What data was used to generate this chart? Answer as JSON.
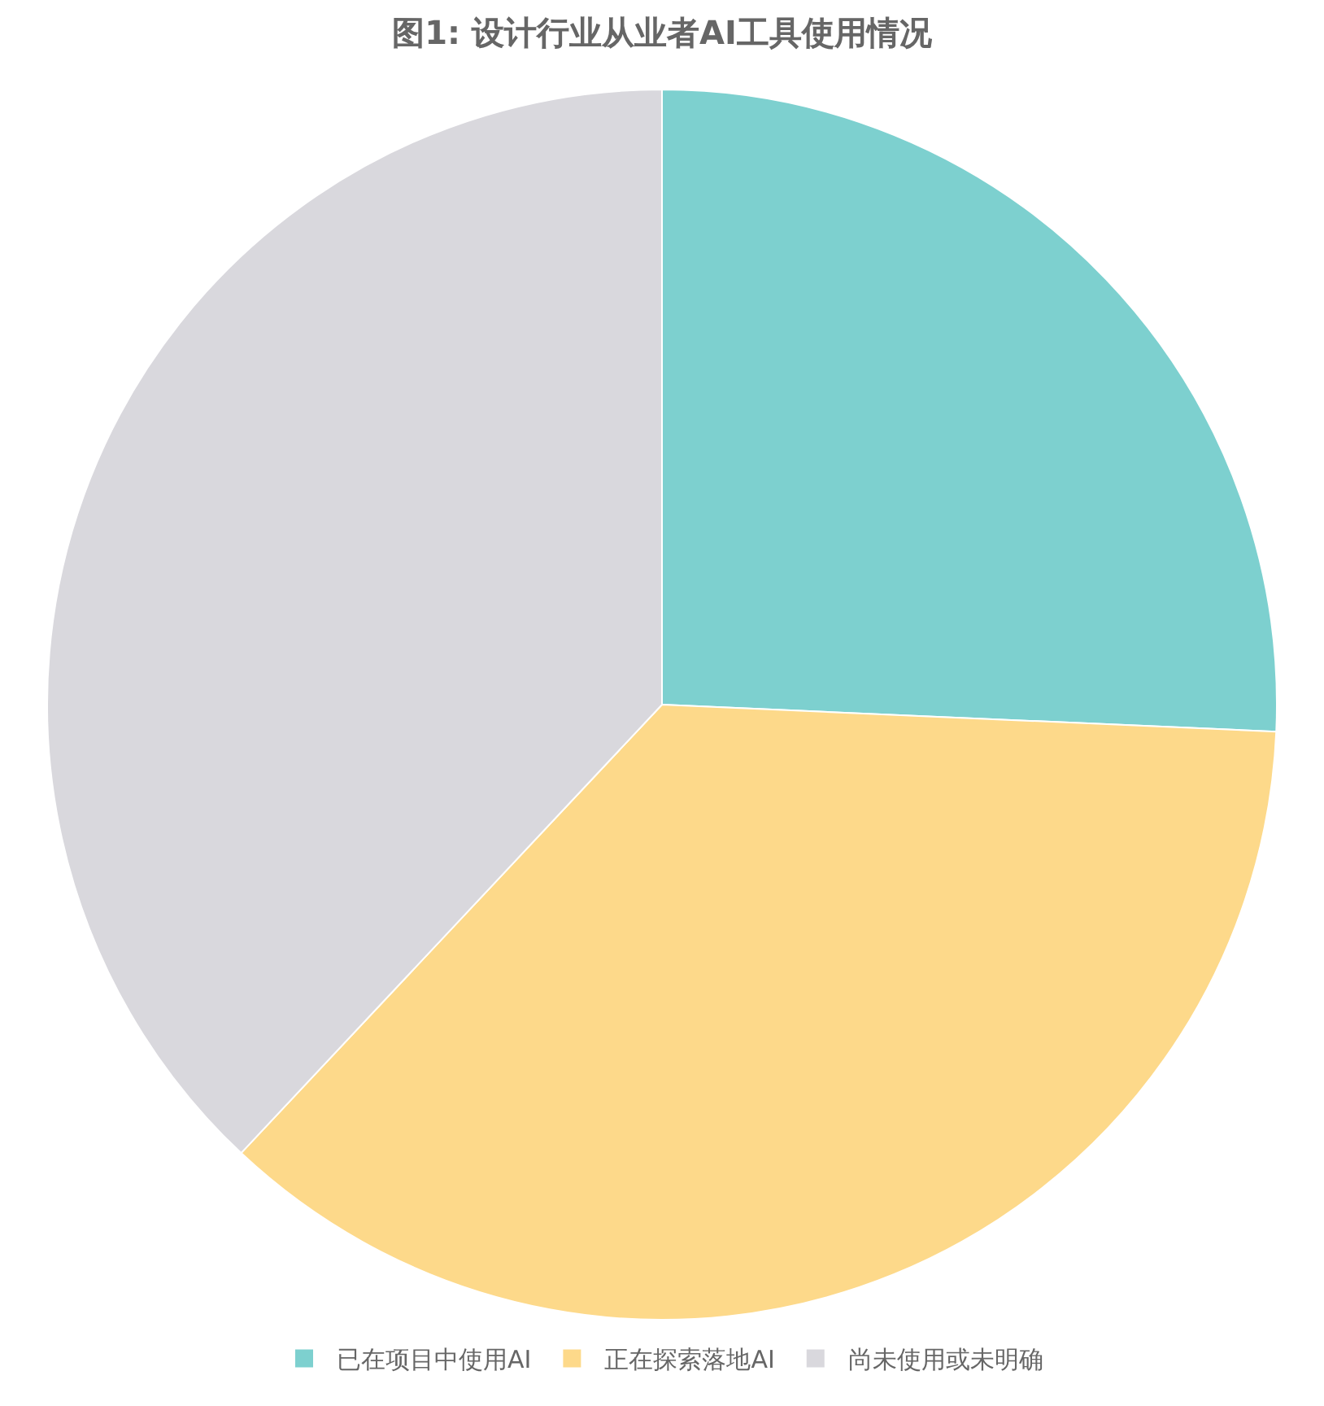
{
  "chart_data": {
    "type": "pie",
    "title": "图1: 设计行业从业者AI工具使用情况",
    "categories": [
      "已在项目中使用AI",
      "正在探索落地AI",
      "尚未使用或未明确"
    ],
    "values": [
      25.7,
      36.3,
      38.0
    ],
    "colors": [
      "#7dd0cf",
      "#fdd98a",
      "#d9d8dd"
    ],
    "legend": "bottom"
  }
}
